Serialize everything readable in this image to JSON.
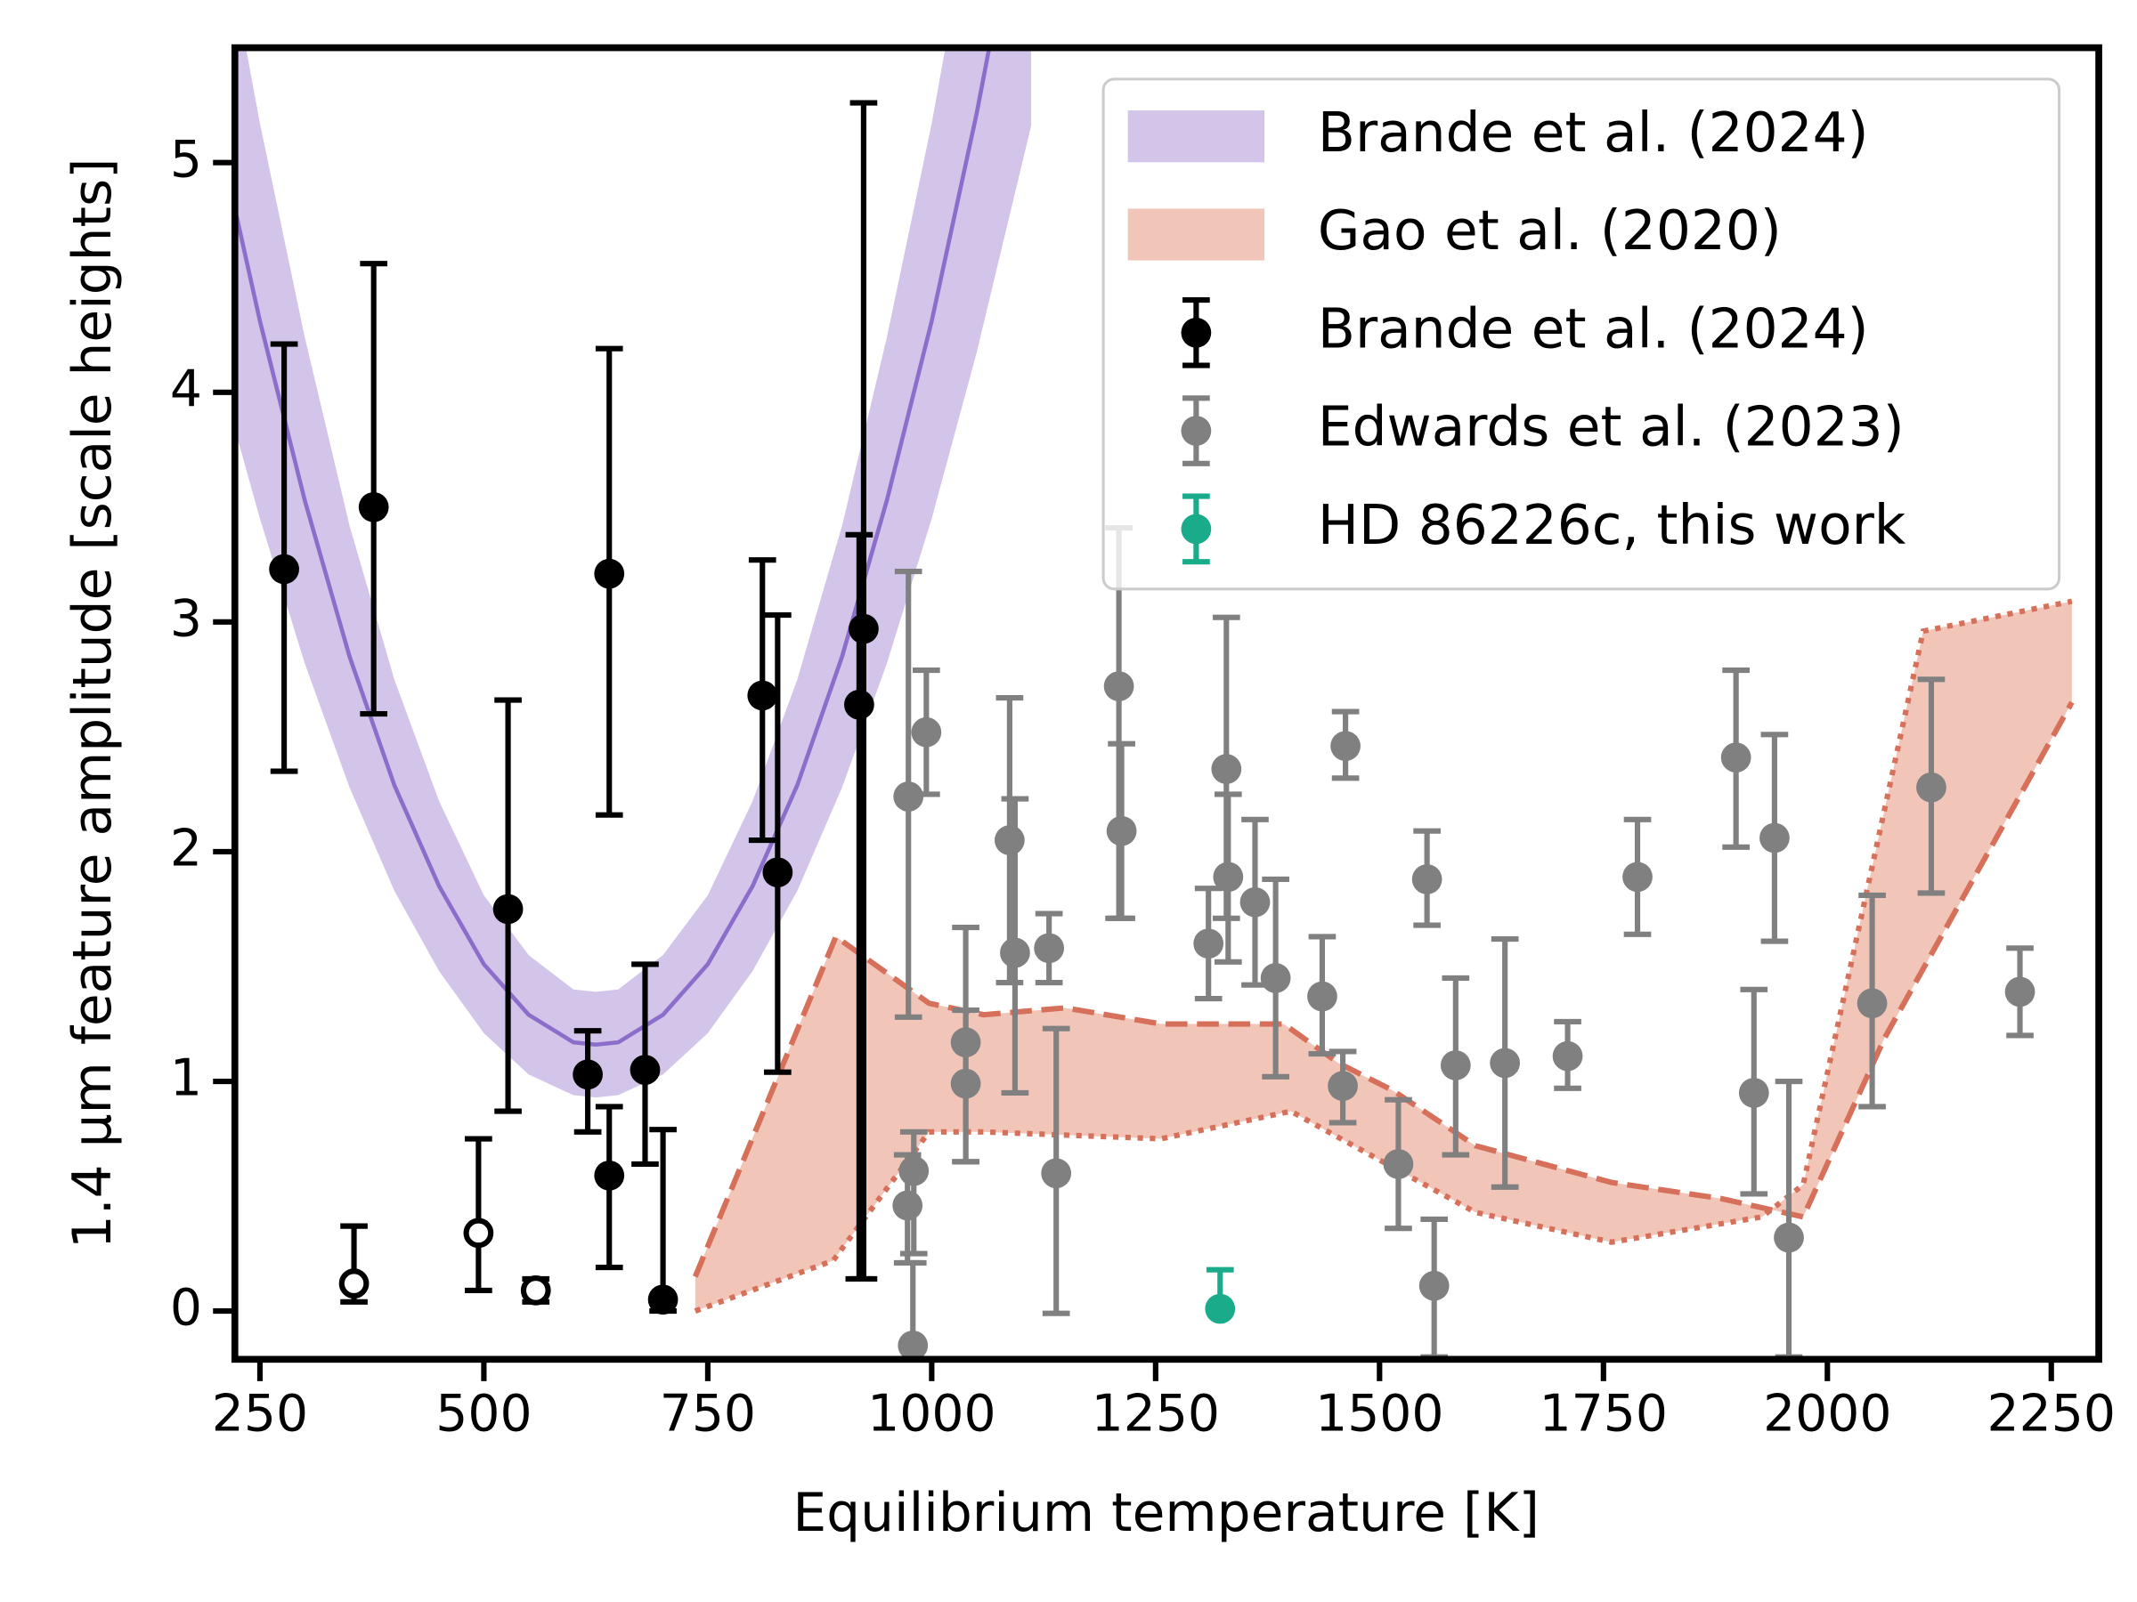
{
  "chart_data": {
    "type": "errorbar",
    "xlabel": "Equilibrium temperature [K]",
    "ylabel": "1.4 μm feature amplitude [scale heights]",
    "xlim": [
      222,
      2303
    ],
    "ylim": [
      -0.21,
      5.5
    ],
    "xticks": [
      250,
      500,
      750,
      1000,
      1250,
      1500,
      1750,
      2000,
      2250
    ],
    "yticks": [
      0,
      1,
      2,
      3,
      4,
      5
    ],
    "legend": "upper right",
    "bands": [
      {
        "name": "Brande et al. (2024)",
        "color": "#d3c4e9",
        "line_color": "#8b6dca",
        "x": [
          222,
          250,
          300,
          350,
          400,
          450,
          500,
          550,
          600,
          625,
          650,
          700,
          750,
          800,
          850,
          900,
          950,
          1000,
          1050,
          1111
        ],
        "y": [
          4.8,
          4.31,
          3.53,
          2.85,
          2.29,
          1.85,
          1.51,
          1.29,
          1.17,
          1.16,
          1.17,
          1.29,
          1.51,
          1.85,
          2.29,
          2.85,
          3.53,
          4.31,
          5.21,
          6.45
        ],
        "lower": [
          3.84,
          3.45,
          2.82,
          2.28,
          1.83,
          1.48,
          1.21,
          1.03,
          0.94,
          0.93,
          0.94,
          1.03,
          1.21,
          1.48,
          1.83,
          2.28,
          2.82,
          3.45,
          4.17,
          5.16
        ],
        "upper": [
          5.76,
          5.17,
          4.24,
          3.42,
          2.75,
          2.22,
          1.81,
          1.55,
          1.4,
          1.39,
          1.4,
          1.55,
          1.81,
          2.22,
          2.75,
          3.42,
          4.24,
          5.17,
          6.25,
          7.74
        ]
      },
      {
        "name": "Gao et al. (2020)",
        "color": "#f1c6b9",
        "line_color": "#d6705a",
        "dashed_x": [
          736,
          893,
          997,
          1058,
          1149,
          1256,
          1393,
          1454,
          1515,
          1607,
          1759,
          1881,
          1973,
          2064,
          2273
        ],
        "dashed_y": [
          0.15,
          1.63,
          1.34,
          1.29,
          1.32,
          1.25,
          1.25,
          1.08,
          0.96,
          0.72,
          0.56,
          0.49,
          0.41,
          1.19,
          2.65
        ],
        "dotted_x": [
          736,
          890,
          997,
          1058,
          1256,
          1401,
          1485,
          1607,
          1759,
          1927,
          1973,
          2107,
          2273
        ],
        "dotted_y": [
          0.0,
          0.22,
          0.78,
          0.78,
          0.75,
          0.87,
          0.69,
          0.43,
          0.3,
          0.41,
          0.55,
          2.96,
          3.09
        ]
      }
    ],
    "series": [
      {
        "name": "Brande et al. (2024)",
        "color": "#000000",
        "filled": true,
        "x": [
          277,
          377,
          527,
          640,
          616,
          640,
          680,
          700,
          811,
          828,
          919,
          924
        ],
        "values": [
          3.23,
          3.5,
          1.75,
          3.21,
          1.03,
          0.59,
          1.05,
          0.05,
          2.68,
          1.91,
          2.64,
          2.97
        ],
        "lower": [
          2.35,
          2.6,
          0.87,
          2.16,
          0.78,
          0.19,
          0.64,
          0.0,
          2.05,
          1.04,
          0.14,
          0.14
        ],
        "upper": [
          4.21,
          4.56,
          2.66,
          4.19,
          1.22,
          0.89,
          1.51,
          0.79,
          3.27,
          3.03,
          3.38,
          5.26
        ]
      },
      {
        "name": "Edwards et al. (2023)",
        "color": "#808080",
        "filled": true,
        "x": [
          974,
          994,
          980,
          973,
          979,
          1038,
          1038,
          1087,
          1093,
          1131,
          1139,
          1209,
          1212,
          1309,
          1329,
          1331,
          1361,
          1384,
          1436,
          1459,
          1462,
          1521,
          1553,
          1561,
          1585,
          1640,
          1710,
          1788,
          1898,
          1918,
          1941,
          1957,
          2050,
          2116,
          2215
        ],
        "values": [
          2.24,
          2.52,
          0.61,
          0.46,
          -0.15,
          1.17,
          0.99,
          2.05,
          1.56,
          1.58,
          0.6,
          2.72,
          2.09,
          1.6,
          2.36,
          1.89,
          1.78,
          1.45,
          1.37,
          0.98,
          2.46,
          0.64,
          1.88,
          0.11,
          1.07,
          1.08,
          1.11,
          1.89,
          2.41,
          0.95,
          2.06,
          0.32,
          1.34,
          2.28,
          1.39
        ],
        "lower": [
          1.28,
          2.25,
          0.25,
          0.21,
          -0.3,
          0.65,
          0.65,
          1.43,
          0.95,
          1.43,
          -0.01,
          1.71,
          1.71,
          1.36,
          1.71,
          1.52,
          1.42,
          1.02,
          1.12,
          0.82,
          2.32,
          0.36,
          1.68,
          -0.2,
          0.68,
          0.54,
          0.97,
          1.64,
          2.02,
          0.51,
          1.61,
          -0.2,
          0.89,
          1.82,
          1.2
        ],
        "upper": [
          3.22,
          2.79,
          0.78,
          0.68,
          0.21,
          1.67,
          1.31,
          2.67,
          2.23,
          1.73,
          1.23,
          3.41,
          2.47,
          1.84,
          3.02,
          2.25,
          2.14,
          1.88,
          1.63,
          1.13,
          2.61,
          0.92,
          2.09,
          0.4,
          1.45,
          1.62,
          1.26,
          2.14,
          2.79,
          1.4,
          2.51,
          1.0,
          1.81,
          2.75,
          1.58
        ]
      },
      {
        "name": "HD 86226c, this work",
        "color": "#1aab8a",
        "filled": true,
        "x": [
          1322
        ],
        "values": [
          0.01
        ],
        "lower": [
          0.0
        ],
        "upper": [
          0.18
        ]
      },
      {
        "color": "#000000",
        "filled": false,
        "x": [
          355,
          494,
          558
        ],
        "values": [
          0.12,
          0.34,
          0.09
        ],
        "lower": [
          0.04,
          0.09,
          0.04
        ],
        "upper": [
          0.37,
          0.75,
          0.14
        ]
      }
    ]
  }
}
